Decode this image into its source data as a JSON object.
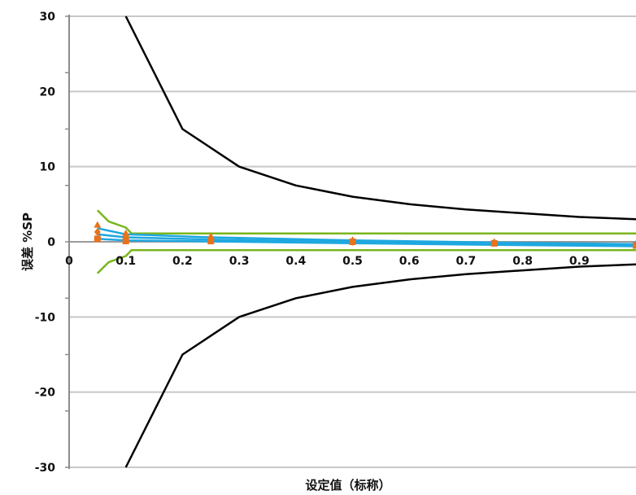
{
  "chart_data": {
    "type": "line",
    "xlabel": "设定值（标称）",
    "ylabel": "误差 %SP",
    "xlim": [
      0,
      1.0
    ],
    "ylim": [
      -30,
      30
    ],
    "x_ticks": [
      "0",
      "0.1",
      "0.2",
      "0.3",
      "0.4",
      "0.5",
      "0.6",
      "0.7",
      "0.8",
      "0.9"
    ],
    "y_ticks": [
      "30",
      "20",
      "10",
      "0",
      "-10",
      "-20",
      "-30"
    ],
    "grid": "horizontal",
    "colors": {
      "envelope": "#000000",
      "spec": "#7ab51d",
      "measured": "#1fa8e0",
      "points": "#e8731c",
      "grid": "#c8c8c8",
      "axis": "#8c8c8c"
    },
    "series": [
      {
        "style": "envelope",
        "x": [
          0.1,
          0.2,
          0.3,
          0.4,
          0.5,
          0.6,
          0.7,
          0.8,
          0.9,
          1.0
        ],
        "y": [
          30,
          15,
          10,
          7.5,
          6,
          5,
          4.3,
          3.8,
          3.3,
          3
        ]
      },
      {
        "style": "envelope",
        "x": [
          0.1,
          0.2,
          0.3,
          0.4,
          0.5,
          0.6,
          0.7,
          0.8,
          0.9,
          1.0
        ],
        "y": [
          -30,
          -15,
          -10,
          -7.5,
          -6,
          -5,
          -4.3,
          -3.8,
          -3.3,
          -3
        ]
      },
      {
        "style": "spec",
        "x": [
          0.05,
          0.07,
          0.1,
          0.11,
          1.0
        ],
        "y": [
          4.2,
          2.7,
          1.9,
          1.1,
          1.1
        ]
      },
      {
        "style": "spec",
        "x": [
          0.05,
          0.07,
          0.1,
          0.11,
          1.0
        ],
        "y": [
          -4.2,
          -2.7,
          -1.9,
          -1.1,
          -1.1
        ]
      },
      {
        "style": "measured",
        "x": [
          0.05,
          0.1,
          0.25,
          0.5,
          0.75,
          1.0
        ],
        "y": [
          1.8,
          1.0,
          0.6,
          0.2,
          -0.1,
          -0.3
        ]
      },
      {
        "style": "measured",
        "x": [
          0.05,
          0.1,
          0.25,
          0.5,
          0.75,
          1.0
        ],
        "y": [
          1.0,
          0.6,
          0.3,
          0.0,
          -0.2,
          -0.4
        ]
      },
      {
        "style": "measured",
        "x": [
          0.05,
          0.1,
          0.25,
          0.5,
          0.75,
          1.0
        ],
        "y": [
          0.4,
          0.2,
          0.05,
          -0.2,
          -0.4,
          -0.6
        ]
      }
    ],
    "markers": [
      {
        "shape": "triangle",
        "x": [
          0.05,
          0.1,
          0.25,
          0.5,
          0.75,
          1.0
        ],
        "y": [
          2.2,
          1.1,
          0.7,
          0.2,
          -0.1,
          -0.3
        ]
      },
      {
        "shape": "diamond",
        "x": [
          0.05,
          0.1,
          0.25,
          0.5,
          0.75,
          1.0
        ],
        "y": [
          1.3,
          0.6,
          0.3,
          0.0,
          -0.1,
          -0.4
        ]
      },
      {
        "shape": "square",
        "x": [
          0.05,
          0.1,
          0.25,
          0.5,
          0.75,
          1.0
        ],
        "y": [
          0.4,
          0.1,
          0.1,
          0.0,
          -0.2,
          -0.5
        ]
      }
    ]
  }
}
